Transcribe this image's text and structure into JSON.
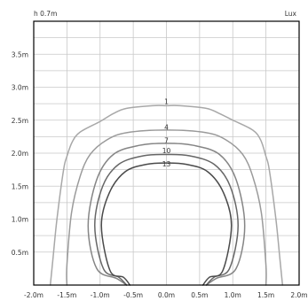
{
  "chart_data": {
    "type": "line",
    "x_unit_label": "h 0.7m",
    "y_unit_label": "Lux",
    "xlim": [
      -2.0,
      2.0
    ],
    "ylim": [
      0,
      4.0
    ],
    "x_ticks": [
      {
        "value": -2.0,
        "label": "-2.0m"
      },
      {
        "value": -1.5,
        "label": "-1.5m"
      },
      {
        "value": -1.0,
        "label": "-1.0m"
      },
      {
        "value": -0.5,
        "label": "-0.5m"
      },
      {
        "value": 0.0,
        "label": "0.0m"
      },
      {
        "value": 0.5,
        "label": "0.5m"
      },
      {
        "value": 1.0,
        "label": "1.0m"
      },
      {
        "value": 1.5,
        "label": "1.5m"
      },
      {
        "value": 2.0,
        "label": "2.0m"
      }
    ],
    "y_ticks": [
      {
        "value": 0.5,
        "label": "0.5m"
      },
      {
        "value": 1.0,
        "label": "1.0m"
      },
      {
        "value": 1.5,
        "label": "1.5m"
      },
      {
        "value": 2.0,
        "label": "2.0m"
      },
      {
        "value": 2.5,
        "label": "2.5m"
      },
      {
        "value": 3.0,
        "label": "3.0m"
      },
      {
        "value": 3.5,
        "label": "3.5m"
      }
    ],
    "grid": true,
    "series": [
      {
        "name": "1",
        "color": "#a8a8a8",
        "label_at": [
          0.0,
          2.72
        ],
        "points": [
          [
            -1.75,
            0.0
          ],
          [
            -1.71,
            0.4
          ],
          [
            -1.65,
            1.0
          ],
          [
            -1.55,
            1.75
          ],
          [
            -1.5,
            1.95
          ],
          [
            -1.42,
            2.17
          ],
          [
            -1.3,
            2.32
          ],
          [
            -1.0,
            2.48
          ],
          [
            -0.8,
            2.6
          ],
          [
            -0.6,
            2.68
          ],
          [
            -0.2,
            2.72
          ],
          [
            0.0,
            2.72
          ],
          [
            0.2,
            2.72
          ],
          [
            0.6,
            2.68
          ],
          [
            0.8,
            2.6
          ],
          [
            1.0,
            2.5
          ],
          [
            1.3,
            2.35
          ],
          [
            1.42,
            2.2
          ],
          [
            1.5,
            1.95
          ],
          [
            1.55,
            1.75
          ],
          [
            1.65,
            1.0
          ],
          [
            1.71,
            0.4
          ],
          [
            1.75,
            0.0
          ]
        ]
      },
      {
        "name": "4",
        "color": "#9a9a9a",
        "label_at": [
          0.0,
          2.33
        ],
        "points": [
          [
            -1.5,
            0.0
          ],
          [
            -1.5,
            0.3
          ],
          [
            -1.43,
            1.1
          ],
          [
            -1.3,
            1.65
          ],
          [
            -1.15,
            1.98
          ],
          [
            -0.9,
            2.2
          ],
          [
            -0.6,
            2.31
          ],
          [
            0.0,
            2.35
          ],
          [
            0.6,
            2.31
          ],
          [
            0.9,
            2.2
          ],
          [
            1.15,
            1.98
          ],
          [
            1.3,
            1.65
          ],
          [
            1.43,
            1.1
          ],
          [
            1.5,
            0.3
          ],
          [
            1.5,
            0.0
          ]
        ]
      },
      {
        "name": "7",
        "color": "#858585",
        "label_at": [
          0.0,
          2.13
        ],
        "points": [
          [
            -0.6,
            0.0
          ],
          [
            -0.75,
            0.1
          ],
          [
            -1.05,
            0.25
          ],
          [
            -1.18,
            0.9
          ],
          [
            -1.05,
            1.6
          ],
          [
            -0.8,
            1.98
          ],
          [
            -0.4,
            2.12
          ],
          [
            0.0,
            2.15
          ],
          [
            0.4,
            2.12
          ],
          [
            0.8,
            1.98
          ],
          [
            1.05,
            1.6
          ],
          [
            1.18,
            0.9
          ],
          [
            1.05,
            0.25
          ],
          [
            0.75,
            0.1
          ],
          [
            0.6,
            0.0
          ]
        ]
      },
      {
        "name": "10",
        "color": "#666666",
        "label_at": [
          0.0,
          1.97
        ],
        "points": [
          [
            -0.6,
            0.0
          ],
          [
            -0.72,
            0.12
          ],
          [
            -0.95,
            0.25
          ],
          [
            -1.08,
            0.9
          ],
          [
            -0.96,
            1.5
          ],
          [
            -0.72,
            1.83
          ],
          [
            -0.35,
            1.96
          ],
          [
            0.0,
            1.98
          ],
          [
            0.35,
            1.96
          ],
          [
            0.72,
            1.83
          ],
          [
            0.96,
            1.5
          ],
          [
            1.08,
            0.9
          ],
          [
            0.95,
            0.25
          ],
          [
            0.72,
            0.12
          ],
          [
            0.6,
            0.0
          ]
        ]
      },
      {
        "name": "13",
        "color": "#4a4a4a",
        "label_at": [
          0.0,
          1.77
        ],
        "points": [
          [
            -0.55,
            0.0
          ],
          [
            -0.65,
            0.12
          ],
          [
            -0.85,
            0.22
          ],
          [
            -0.98,
            0.9
          ],
          [
            -0.86,
            1.4
          ],
          [
            -0.62,
            1.72
          ],
          [
            -0.3,
            1.83
          ],
          [
            0.0,
            1.85
          ],
          [
            0.3,
            1.83
          ],
          [
            0.62,
            1.72
          ],
          [
            0.86,
            1.4
          ],
          [
            0.98,
            0.9
          ],
          [
            0.85,
            0.22
          ],
          [
            0.65,
            0.12
          ],
          [
            0.55,
            0.0
          ]
        ]
      }
    ]
  }
}
